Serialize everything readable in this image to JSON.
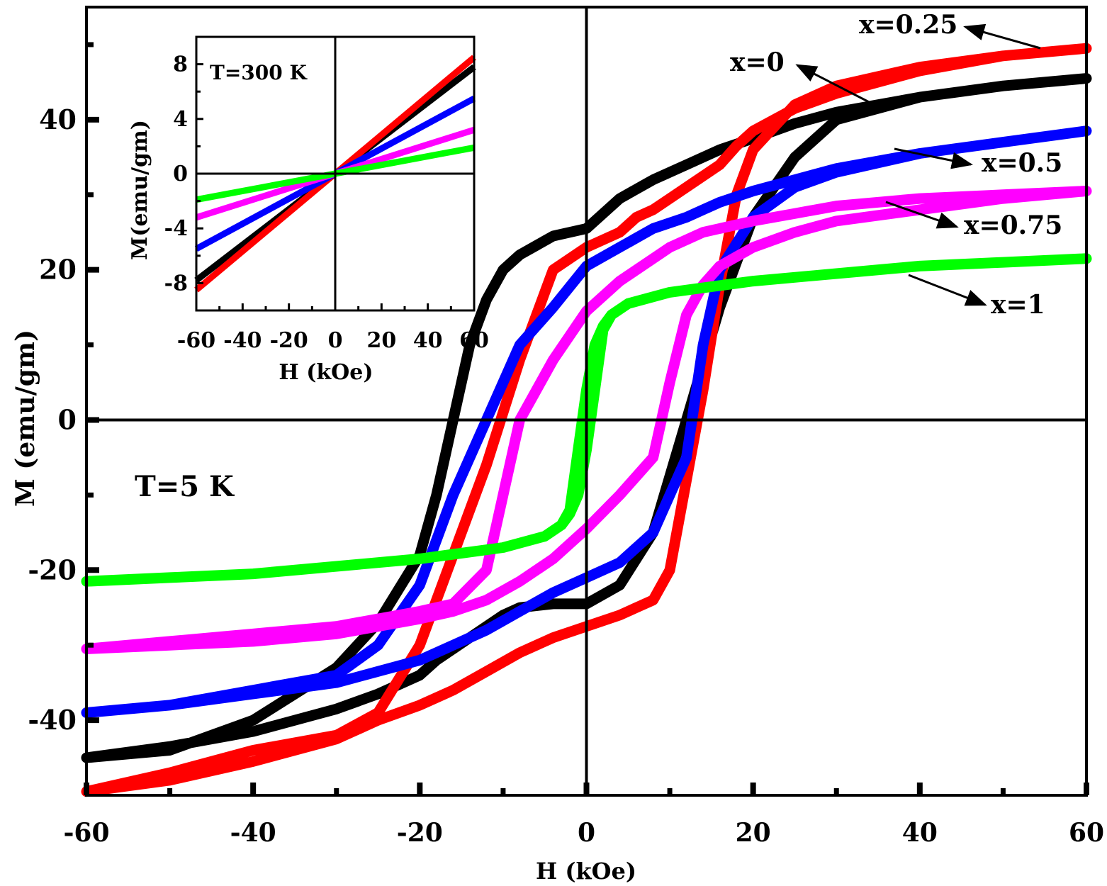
{
  "chart_data": [
    {
      "type": "line",
      "panel": "main",
      "xlabel": "H (kOe)",
      "ylabel": "M (emu/gm)",
      "xlim": [
        -60,
        60
      ],
      "ylim": [
        -50,
        55
      ],
      "xticks": [
        -60,
        -40,
        -20,
        0,
        20,
        40,
        60
      ],
      "yticks": [
        -40,
        -20,
        0,
        20,
        40
      ],
      "x_tick_labels": [
        "-60",
        "-40",
        "-20",
        "0",
        "20",
        "40",
        "60"
      ],
      "y_tick_labels": [
        "-40",
        "-20",
        "0",
        "20",
        "40"
      ],
      "annotation": "T=5 K",
      "grid": false,
      "series": [
        {
          "name": "x=0",
          "color": "#000000",
          "loop": true,
          "x": [
            -60,
            -50,
            -40,
            -30,
            -25,
            -20,
            -18,
            -16,
            -14,
            -12,
            -10,
            -8,
            -4,
            0,
            4,
            8,
            12,
            16,
            20,
            25,
            30,
            40,
            50,
            60
          ],
          "y": [
            -45,
            -43.5,
            -41.5,
            -38.5,
            -36.5,
            -34,
            -32,
            -30.5,
            -29,
            -27.5,
            -26,
            -25,
            -24.5,
            -24.5,
            -22,
            -15,
            0,
            15,
            27,
            35,
            40,
            43,
            44.5,
            45.5
          ],
          "y_desc": [
            -45,
            -44,
            -40,
            -33,
            -27,
            -18,
            -10,
            0,
            10,
            16,
            20,
            22,
            24.5,
            25.5,
            29.5,
            32,
            34,
            36,
            37.5,
            39.5,
            41,
            43,
            44.5,
            45.5
          ]
        },
        {
          "name": "x=0.25",
          "color": "#ff0000",
          "loop": true,
          "x": [
            -60,
            -50,
            -40,
            -30,
            -25,
            -20,
            -16,
            -12,
            -8,
            -4,
            0,
            4,
            6,
            8,
            10,
            12,
            14,
            16,
            18,
            20,
            25,
            30,
            40,
            50,
            60
          ],
          "y": [
            -49.5,
            -48,
            -45.5,
            -42.5,
            -40,
            -38,
            -36,
            -33.5,
            -31,
            -29,
            -27.5,
            -26,
            -25,
            -24,
            -20,
            -8,
            4,
            18,
            30,
            36,
            42,
            44.5,
            47,
            48.5,
            49.5
          ],
          "y_desc": [
            -49.5,
            -47,
            -44,
            -42,
            -39,
            -30,
            -18,
            -6,
            8,
            20,
            23,
            25,
            27,
            28,
            29.5,
            31,
            32.5,
            34,
            36.5,
            38.5,
            41.5,
            43.5,
            46.5,
            48.5,
            49.5
          ]
        },
        {
          "name": "x=0.5",
          "color": "#0000ff",
          "loop": true,
          "x": [
            -60,
            -50,
            -40,
            -30,
            -25,
            -20,
            -16,
            -12,
            -8,
            -4,
            0,
            4,
            8,
            12,
            14,
            16,
            20,
            25,
            30,
            40,
            50,
            60
          ],
          "y": [
            -39,
            -38,
            -36.5,
            -35,
            -33.5,
            -32,
            -30,
            -28,
            -25.5,
            -23,
            -21,
            -19,
            -15,
            -5,
            10,
            20,
            27,
            31,
            33,
            35.5,
            37,
            38.5
          ],
          "y_desc": [
            -39,
            -38,
            -36,
            -34,
            -30,
            -22,
            -10,
            0,
            10,
            15,
            20.5,
            23,
            25.5,
            27,
            28,
            29,
            30.5,
            32,
            33.5,
            35.5,
            37,
            38.5
          ]
        },
        {
          "name": "x=0.75",
          "color": "#ff00ff",
          "loop": true,
          "x": [
            -60,
            -50,
            -40,
            -30,
            -20,
            -16,
            -12,
            -8,
            -4,
            0,
            4,
            8,
            10,
            12,
            14,
            16,
            20,
            25,
            30,
            40,
            50,
            60
          ],
          "y": [
            -30.5,
            -30,
            -29.5,
            -28.5,
            -26.5,
            -25.5,
            -24,
            -21.5,
            -18.5,
            -14.5,
            -10,
            -5,
            5,
            14,
            18,
            20.5,
            23,
            25,
            26.5,
            28,
            29.5,
            30.5
          ],
          "y_desc": [
            -30.5,
            -29.5,
            -28.5,
            -27.5,
            -25.5,
            -24.5,
            -20,
            0,
            8,
            14.5,
            18.5,
            21.5,
            23,
            24,
            25,
            25.5,
            26.5,
            27.5,
            28.5,
            29.5,
            30,
            30.5
          ]
        },
        {
          "name": "x=1",
          "color": "#00ff00",
          "loop": true,
          "x": [
            -60,
            -50,
            -40,
            -30,
            -20,
            -10,
            -5,
            -3,
            -2,
            -1,
            0,
            1,
            2,
            3,
            5,
            10,
            20,
            30,
            40,
            50,
            60
          ],
          "y": [
            -21.5,
            -21,
            -20.5,
            -19.5,
            -18.5,
            -17,
            -15.5,
            -14,
            -12,
            -4,
            4,
            10,
            12.5,
            14,
            15.5,
            17,
            18.5,
            19.5,
            20.5,
            21,
            21.5
          ],
          "y_desc": [
            -21.5,
            -21,
            -20.5,
            -19.5,
            -18.5,
            -17,
            -15.5,
            -14,
            -12.5,
            -10,
            -4,
            4,
            12,
            14,
            15.5,
            17,
            18.5,
            19.5,
            20.5,
            21,
            21.5
          ]
        }
      ],
      "labels": [
        {
          "text": "x=0.25",
          "series": "x=0.25"
        },
        {
          "text": "x=0",
          "series": "x=0"
        },
        {
          "text": "x=0.5",
          "series": "x=0.5"
        },
        {
          "text": "x=0.75",
          "series": "x=0.75"
        },
        {
          "text": "x=1",
          "series": "x=1"
        }
      ]
    },
    {
      "type": "line",
      "panel": "inset",
      "xlabel": "H (kOe)",
      "ylabel": "M(emu/gm)",
      "xlim": [
        -60,
        60
      ],
      "ylim": [
        -10,
        10
      ],
      "xticks": [
        -60,
        -40,
        -20,
        0,
        20,
        40,
        60
      ],
      "yticks": [
        -8,
        -4,
        0,
        4,
        8
      ],
      "x_tick_labels": [
        "-60",
        "-40",
        "-20",
        "0",
        "20",
        "40",
        "60"
      ],
      "y_tick_labels": [
        "-8",
        "-4",
        "0",
        "4",
        "8"
      ],
      "annotation": "T=300 K",
      "grid": false,
      "series": [
        {
          "series_ref": "x=0",
          "color": "#000000",
          "x": [
            -60,
            60
          ],
          "y": [
            -7.8,
            7.8
          ]
        },
        {
          "series_ref": "x=0.25",
          "color": "#ff0000",
          "x": [
            -60,
            60
          ],
          "y": [
            -8.5,
            8.5
          ]
        },
        {
          "series_ref": "x=0.5",
          "color": "#0000ff",
          "x": [
            -60,
            60
          ],
          "y": [
            -5.5,
            5.5
          ]
        },
        {
          "series_ref": "x=0.75",
          "color": "#ff00ff",
          "x": [
            -60,
            60
          ],
          "y": [
            -3.2,
            3.2
          ]
        },
        {
          "series_ref": "x=1",
          "color": "#00ff00",
          "x": [
            -60,
            60
          ],
          "y": [
            -1.9,
            1.9
          ]
        }
      ]
    }
  ]
}
